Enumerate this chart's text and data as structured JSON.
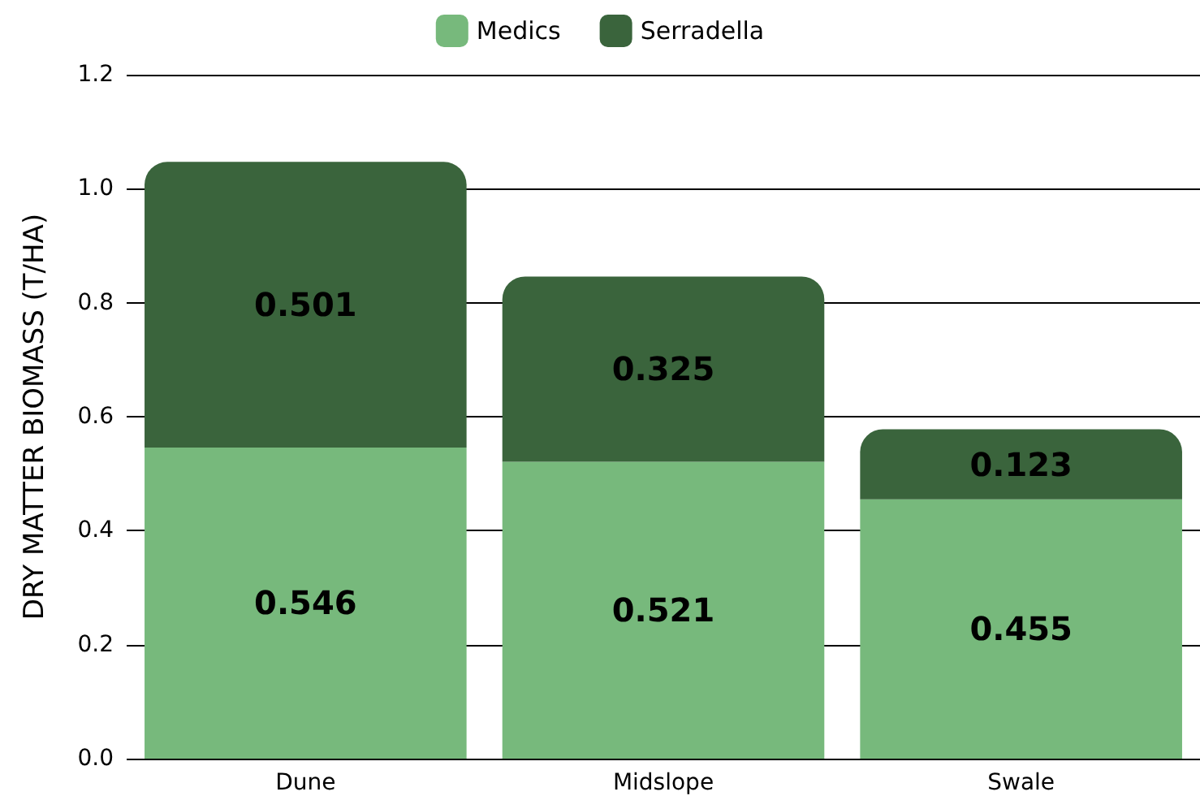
{
  "chart_data": {
    "type": "bar",
    "ylabel": "DRY MATTER BIOMASS (T/HA)",
    "categories": [
      "Dune",
      "Midslope",
      "Swale"
    ],
    "stacked": true,
    "data_labels": true,
    "legend": "top",
    "grid": "y",
    "series": [
      {
        "name": "Medics",
        "color": "#77b97c",
        "values": [
          0.546,
          0.521,
          0.455
        ]
      },
      {
        "name": "Serradella",
        "color": "#3a643c",
        "values": [
          0.501,
          0.325,
          0.123
        ]
      }
    ],
    "ylim": [
      0,
      1.2
    ],
    "yticks": [
      {
        "value": 0,
        "label": "0.0"
      },
      0.2,
      0.4,
      0.6,
      0.8,
      {
        "value": 1,
        "label": "1.0"
      },
      1.2
    ]
  }
}
